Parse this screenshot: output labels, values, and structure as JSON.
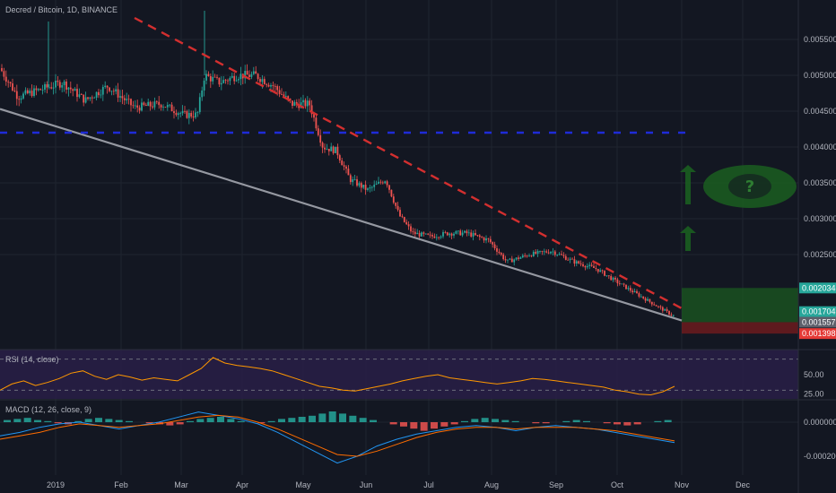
{
  "chart_data": [
    {
      "type": "candlestick",
      "title": "Decred / Bitcoin, 1D, BINANCE",
      "ylim": [
        0.0013,
        0.0058
      ],
      "y_ticks": [
        "0.005500",
        "0.005000",
        "0.004500",
        "0.004000",
        "0.003500",
        "0.003000",
        "0.002500"
      ],
      "x_ticks": [
        "2019",
        "Feb",
        "Mar",
        "Apr",
        "May",
        "Jun",
        "Jul",
        "Aug",
        "Sep",
        "Oct",
        "Nov",
        "Dec"
      ],
      "price_path": [
        {
          "x": 0,
          "y": 0.0051
        },
        {
          "x": 20,
          "y": 0.0047
        },
        {
          "x": 45,
          "y": 0.0048
        },
        {
          "x": 70,
          "y": 0.0049
        },
        {
          "x": 95,
          "y": 0.00465
        },
        {
          "x": 120,
          "y": 0.00485
        },
        {
          "x": 150,
          "y": 0.00455
        },
        {
          "x": 180,
          "y": 0.0046
        },
        {
          "x": 205,
          "y": 0.00445
        },
        {
          "x": 220,
          "y": 0.00445
        },
        {
          "x": 228,
          "y": 0.005
        },
        {
          "x": 245,
          "y": 0.0049
        },
        {
          "x": 265,
          "y": 0.005
        },
        {
          "x": 285,
          "y": 0.005
        },
        {
          "x": 305,
          "y": 0.00485
        },
        {
          "x": 325,
          "y": 0.0046
        },
        {
          "x": 345,
          "y": 0.0046
        },
        {
          "x": 360,
          "y": 0.004
        },
        {
          "x": 375,
          "y": 0.00395
        },
        {
          "x": 390,
          "y": 0.00355
        },
        {
          "x": 410,
          "y": 0.0034
        },
        {
          "x": 430,
          "y": 0.00355
        },
        {
          "x": 445,
          "y": 0.00305
        },
        {
          "x": 460,
          "y": 0.0028
        },
        {
          "x": 480,
          "y": 0.00275
        },
        {
          "x": 500,
          "y": 0.0028
        },
        {
          "x": 520,
          "y": 0.0028
        },
        {
          "x": 545,
          "y": 0.0027
        },
        {
          "x": 565,
          "y": 0.0024
        },
        {
          "x": 590,
          "y": 0.0025
        },
        {
          "x": 615,
          "y": 0.00255
        },
        {
          "x": 640,
          "y": 0.0024
        },
        {
          "x": 665,
          "y": 0.0023
        },
        {
          "x": 690,
          "y": 0.0021
        },
        {
          "x": 710,
          "y": 0.00195
        },
        {
          "x": 730,
          "y": 0.0018
        },
        {
          "x": 750,
          "y": 0.00165
        }
      ],
      "trendlines": [
        {
          "style": "solid",
          "color": "#9598a1",
          "from": {
            "x": 0,
            "y": 0.00453
          },
          "to": {
            "x": 760,
            "y": 0.00158
          }
        },
        {
          "style": "dashed",
          "color": "#d32f2f",
          "from": {
            "x": 150,
            "y": 0.0058
          },
          "to": {
            "x": 760,
            "y": 0.00175
          }
        },
        {
          "style": "dashed",
          "color": "#1e2bd8",
          "from": {
            "x": 0,
            "y": 0.0042
          },
          "to": {
            "x": 770,
            "y": 0.0042
          }
        }
      ],
      "target_zone": {
        "top": 0.002034,
        "entry": 0.001557,
        "stop": 0.001398
      },
      "price_tags": [
        {
          "text": "0.002034",
          "color": "#26a69a",
          "value": 0.002034
        },
        {
          "text": "0.001704",
          "color": "#26a69a",
          "value": 0.001704
        },
        {
          "text": "0.001557",
          "color": "#5d606b",
          "value": 0.001557
        },
        {
          "text": "0.001398",
          "color": "#e53935",
          "value": 0.001398
        }
      ]
    },
    {
      "type": "line",
      "title": "RSI (14, close)",
      "ylim": [
        20,
        80
      ],
      "y_ticks": [
        "50.00",
        "25.00"
      ],
      "bands": [
        30,
        70
      ],
      "series": [
        {
          "values": [
            30,
            38,
            42,
            36,
            40,
            45,
            52,
            55,
            48,
            44,
            50,
            47,
            43,
            46,
            44,
            42,
            50,
            58,
            72,
            65,
            62,
            60,
            58,
            55,
            50,
            45,
            40,
            35,
            33,
            30,
            29,
            32,
            35,
            38,
            42,
            45,
            48,
            50,
            46,
            44,
            42,
            40,
            38,
            40,
            42,
            45,
            44,
            42,
            40,
            38,
            36,
            34,
            30,
            28,
            25,
            24,
            28,
            35
          ]
        }
      ]
    },
    {
      "type": "bar",
      "title": "MACD (12, 26, close, 9)",
      "ylim": [
        -0.0003,
        0.0001
      ],
      "y_ticks": [
        "0.000000",
        "-0.000200"
      ],
      "histogram": [
        2,
        3,
        4,
        2,
        1,
        -1,
        -2,
        1,
        3,
        4,
        3,
        2,
        1,
        0,
        -1,
        -2,
        -3,
        -2,
        1,
        3,
        4,
        5,
        3,
        1,
        0,
        -1,
        1,
        3,
        4,
        5,
        6,
        8,
        10,
        8,
        6,
        4,
        2,
        0,
        -2,
        -4,
        -6,
        -8,
        -6,
        -4,
        -2,
        1,
        3,
        4,
        3,
        2,
        1,
        0,
        -1,
        -1,
        0,
        1,
        2,
        1,
        0,
        -1,
        -2,
        -3,
        -2,
        0,
        1,
        2
      ],
      "series": [
        {
          "values": [
            -8e-05,
            -6e-05,
            -3e-05,
            -1e-05,
            0.0,
            -2e-05,
            -4e-05,
            -2e-05,
            0.0,
            3e-05,
            6e-05,
            4e-05,
            2e-05,
            -1e-05,
            -6e-05,
            -0.00012,
            -0.00018,
            -0.00024,
            -0.0002,
            -0.00014,
            -0.0001,
            -7e-05,
            -5e-05,
            -3e-05,
            -2e-05,
            -3e-05,
            -5e-05,
            -3e-05,
            -2e-05,
            -3e-05,
            -4e-05,
            -6e-05,
            -8e-05,
            -0.0001,
            -0.00012
          ]
        },
        {
          "values": [
            -0.0001,
            -8e-05,
            -6e-05,
            -3e-05,
            -1e-05,
            -2e-05,
            -3e-05,
            -2e-05,
            -1e-05,
            1e-05,
            3e-05,
            4e-05,
            3e-05,
            0.0,
            -4e-05,
            -9e-05,
            -0.00014,
            -0.00019,
            -0.0002,
            -0.00017,
            -0.00013,
            -9e-05,
            -6e-05,
            -4e-05,
            -3e-05,
            -3e-05,
            -4e-05,
            -3e-05,
            -3e-05,
            -3e-05,
            -4e-05,
            -5e-05,
            -7e-05,
            -9e-05,
            -0.00011
          ]
        }
      ]
    }
  ],
  "theme": {
    "bg": "#131722",
    "grid": "#1f2430",
    "up": "#26a69a",
    "down": "#ef5350",
    "rsi": "#ff9800",
    "macd": "#2196f3",
    "signal": "#ff6d00",
    "zone_green": "#1b5e20",
    "zone_red": "#7f1d1d"
  }
}
